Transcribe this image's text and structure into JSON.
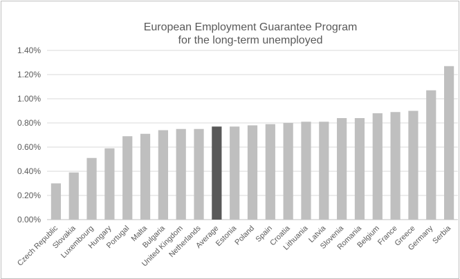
{
  "chart_data": {
    "type": "bar",
    "title": [
      "European Employment Guarantee Program",
      "for the long-term unemployed"
    ],
    "categories": [
      "Czech Republic",
      "Slovakia",
      "Luxembourg",
      "Hungary",
      "Portugal",
      "Malta",
      "Bulgaria",
      "United Kingdom",
      "Netherlands",
      "Average",
      "Estonia",
      "Poland",
      "Spain",
      "Croatia",
      "Lithuania",
      "Latvia",
      "Slovenia",
      "Romania",
      "Belgium",
      "France",
      "Greece",
      "Germany",
      "Serbia"
    ],
    "values": [
      0.3,
      0.39,
      0.51,
      0.59,
      0.69,
      0.71,
      0.74,
      0.75,
      0.75,
      0.77,
      0.77,
      0.78,
      0.79,
      0.8,
      0.81,
      0.81,
      0.84,
      0.84,
      0.88,
      0.89,
      0.9,
      1.07,
      1.27
    ],
    "value_unit": "%",
    "highlight_category": "Average",
    "ylim": [
      0,
      1.4
    ],
    "yticks": [
      0,
      0.2,
      0.4,
      0.6,
      0.8,
      1.0,
      1.2,
      1.4
    ],
    "ytick_labels": [
      "0.00%",
      "0.20%",
      "0.40%",
      "0.60%",
      "0.80%",
      "1.00%",
      "1.20%",
      "1.40%"
    ],
    "xlabel": "",
    "ylabel": "",
    "grid": true,
    "legend": "none",
    "colors": {
      "bar": "#bfbfbf",
      "highlight": "#595959",
      "grid": "#d9d9d9",
      "axis": "#bfbfbf",
      "text": "#595959"
    }
  }
}
